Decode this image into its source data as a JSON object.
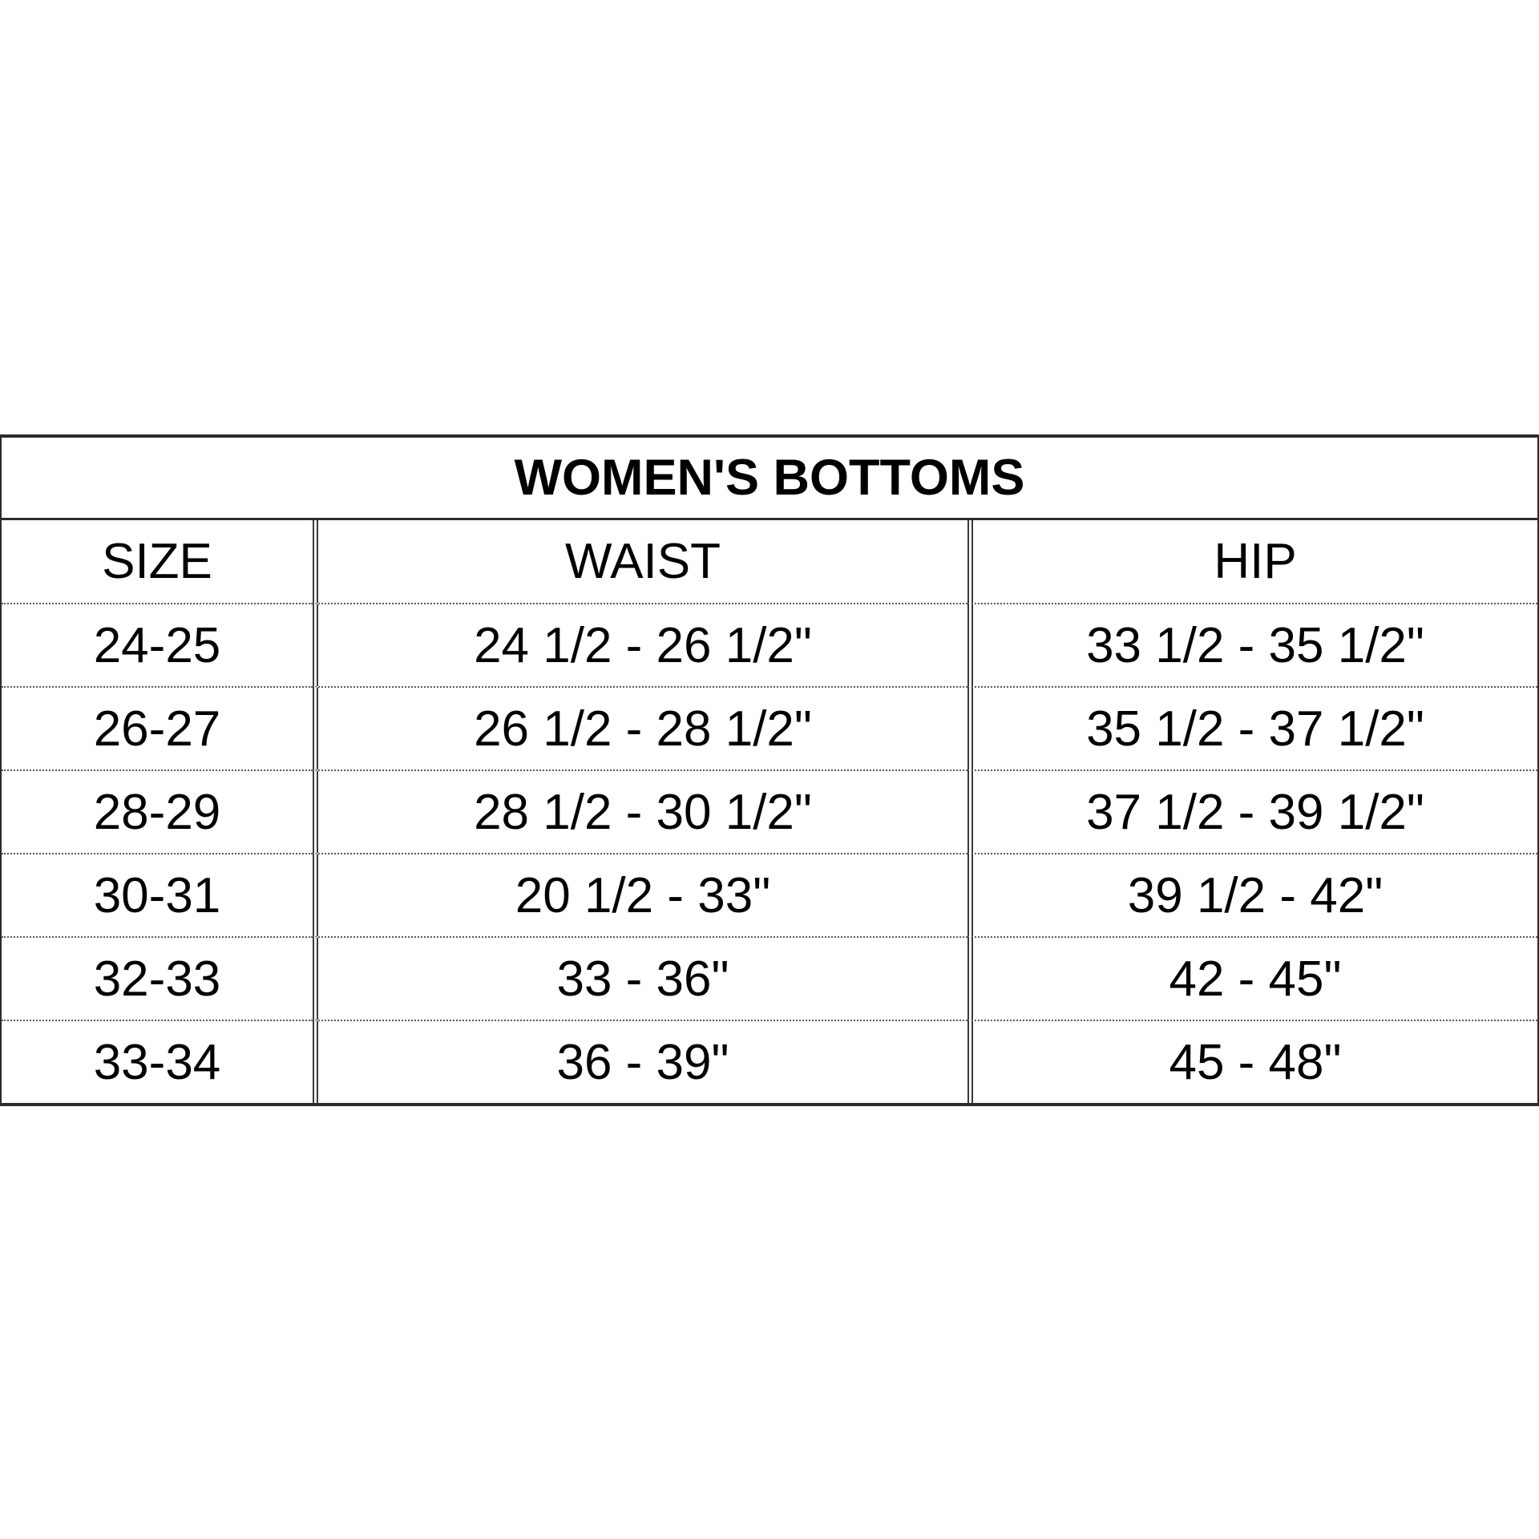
{
  "table": {
    "title": "WOMEN'S BOTTOMS",
    "columns": [
      "SIZE",
      "WAIST",
      "HIP"
    ],
    "rows": [
      {
        "size": "24-25",
        "waist": "24 1/2 - 26 1/2\"",
        "hip": "33 1/2 - 35 1/2\""
      },
      {
        "size": "26-27",
        "waist": "26 1/2 - 28 1/2\"",
        "hip": "35 1/2 - 37 1/2\""
      },
      {
        "size": "28-29",
        "waist": "28 1/2 - 30 1/2\"",
        "hip": "37 1/2 - 39 1/2\""
      },
      {
        "size": "30-31",
        "waist": "20 1/2 - 33\"",
        "hip": "39 1/2 - 42\""
      },
      {
        "size": "32-33",
        "waist": "33 - 36\"",
        "hip": "42 - 45\""
      },
      {
        "size": "33-34",
        "waist": "36 - 39\"",
        "hip": "45 - 48\""
      }
    ]
  },
  "colors": {
    "background": "#ffffff",
    "text": "#000000",
    "solid_border": "#2b2b2b",
    "dotted_border": "#5a5a5a"
  },
  "chart_data": {
    "type": "table",
    "title": "WOMEN'S BOTTOMS",
    "columns": [
      "SIZE",
      "WAIST",
      "HIP"
    ],
    "rows": [
      [
        "24-25",
        "24 1/2 - 26 1/2\"",
        "33 1/2 - 35 1/2\""
      ],
      [
        "26-27",
        "26 1/2 - 28 1/2\"",
        "35 1/2 - 37 1/2\""
      ],
      [
        "28-29",
        "28 1/2 - 30 1/2\"",
        "37 1/2 - 39 1/2\""
      ],
      [
        "30-31",
        "20 1/2 - 33\"",
        "39 1/2 - 42\""
      ],
      [
        "32-33",
        "33 - 36\"",
        "42 - 45\""
      ],
      [
        "33-34",
        "36 - 39\"",
        "45 - 48\""
      ]
    ]
  }
}
